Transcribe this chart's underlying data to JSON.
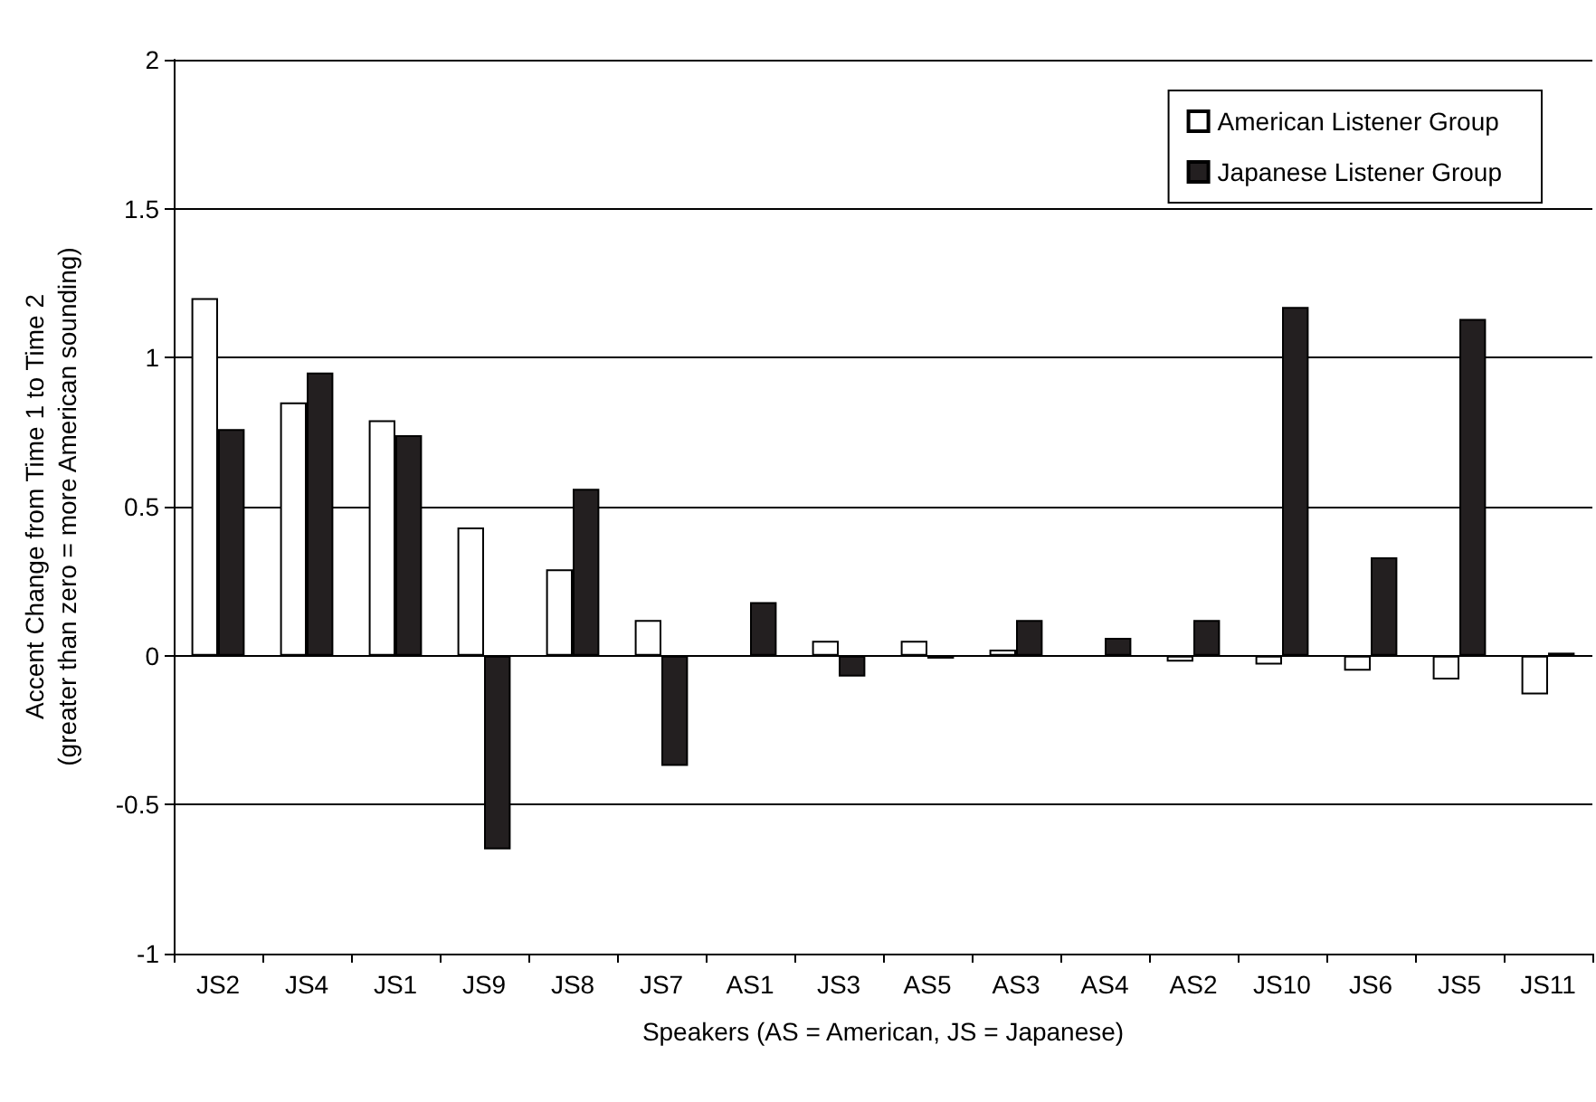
{
  "chart_data": {
    "type": "bar",
    "xlabel": "Speakers (AS = American, JS = Japanese)",
    "ylabel": "Accent Change from Time 1 to Time 2\n(greater than zero = more American sounding)",
    "categories": [
      "JS2",
      "JS4",
      "JS1",
      "JS9",
      "JS8",
      "JS7",
      "AS1",
      "JS3",
      "AS5",
      "AS3",
      "AS4",
      "AS2",
      "JS10",
      "JS6",
      "JS5",
      "JS11"
    ],
    "series": [
      {
        "name": "American Listener Group",
        "color": "#ffffff",
        "values": [
          1.2,
          0.85,
          0.79,
          0.43,
          0.29,
          0.12,
          null,
          0.05,
          0.05,
          0.02,
          null,
          -0.02,
          -0.03,
          -0.05,
          -0.08,
          -0.13
        ]
      },
      {
        "name": "Japanese Listener Group",
        "color": "#231f20",
        "values": [
          0.76,
          0.95,
          0.74,
          -0.65,
          0.56,
          -0.37,
          0.18,
          -0.07,
          -0.01,
          0.12,
          0.06,
          0.12,
          1.17,
          0.33,
          1.13,
          0.01
        ]
      }
    ],
    "ylim": [
      -1,
      2
    ],
    "yticks": [
      -1,
      -0.5,
      0,
      0.5,
      1,
      1.5,
      2
    ],
    "grid": "y",
    "legend": "top right"
  }
}
